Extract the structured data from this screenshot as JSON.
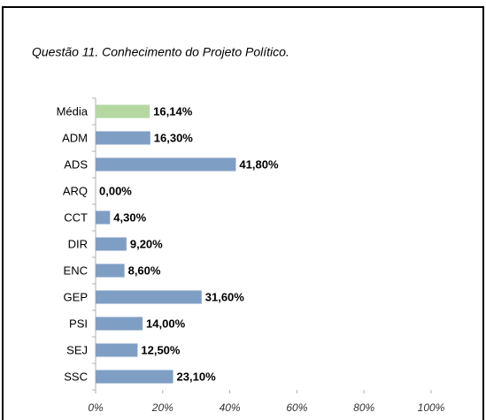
{
  "chart_data": {
    "type": "barh",
    "title": "Questão 11. Conhecimento do Projeto Político.",
    "categories": [
      "Média",
      "ADM",
      "ADS",
      "ARQ",
      "CCT",
      "DIR",
      "ENC",
      "GEP",
      "PSI",
      "SEJ",
      "SSC"
    ],
    "values": [
      16.14,
      16.3,
      41.8,
      0,
      4.3,
      9.2,
      8.6,
      31.6,
      14,
      12.5,
      23.1
    ],
    "value_labels": [
      "16,14%",
      "16,30%",
      "41,80%",
      "0,00%",
      "4,30%",
      "9,20%",
      "8,60%",
      "31,60%",
      "14,00%",
      "12,50%",
      "23,10%"
    ],
    "colors": [
      "#b5d8a3",
      "#7f9ec4",
      "#7f9ec4",
      "#7f9ec4",
      "#7f9ec4",
      "#7f9ec4",
      "#7f9ec4",
      "#7f9ec4",
      "#7f9ec4",
      "#7f9ec4",
      "#7f9ec4"
    ],
    "xlim": [
      0,
      100
    ],
    "xticks": [
      {
        "value": 0,
        "label": "0%"
      },
      {
        "value": 20,
        "label": "20%"
      },
      {
        "value": 40,
        "label": "40%"
      },
      {
        "value": 60,
        "label": "60%"
      },
      {
        "value": 80,
        "label": "80%"
      },
      {
        "value": 100,
        "label": "100%"
      }
    ]
  }
}
